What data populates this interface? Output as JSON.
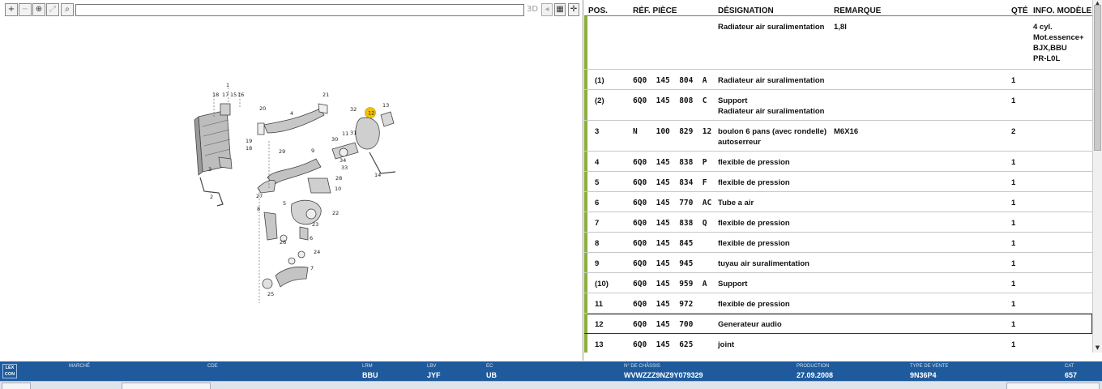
{
  "toolbar": {
    "zoom_in": "+",
    "zoom_out": "−",
    "zoom_area": "⊕",
    "zoom_fit": "⤢",
    "search": "⌕",
    "mode_3d": "3D"
  },
  "table": {
    "headers": {
      "pos": "POS.",
      "ref": "RÉF. PIÈCE",
      "designation": "DÉSIGNATION",
      "remarque": "REMARQUE",
      "qte": "QTÉ",
      "info": "INFO. MODÈLE"
    },
    "rows": [
      {
        "pos": "",
        "ref": "",
        "designation": "Radiateur air suralimentation",
        "remarque": "1,8l",
        "qte": "",
        "info": "4 cyl.\nMot.essence+\nBJX,BBU\nPR-L0L"
      },
      {
        "pos": "(1)",
        "ref": "6Q0  145  804  A",
        "designation": "Radiateur air suralimentation",
        "remarque": "",
        "qte": "1",
        "info": ""
      },
      {
        "pos": "(2)",
        "ref": "6Q0  145  808  C",
        "designation": "Support\nRadiateur air suralimentation",
        "remarque": "",
        "qte": "1",
        "info": ""
      },
      {
        "pos": "3",
        "ref": "N    100  829  12",
        "designation": "boulon 6 pans (avec rondelle)\nautoserreur",
        "remarque": "M6X16",
        "qte": "2",
        "info": ""
      },
      {
        "pos": "4",
        "ref": "6Q0  145  838  P",
        "designation": "flexible de pression",
        "remarque": "",
        "qte": "1",
        "info": ""
      },
      {
        "pos": "5",
        "ref": "6Q0  145  834  F",
        "designation": "flexible de pression",
        "remarque": "",
        "qte": "1",
        "info": ""
      },
      {
        "pos": "6",
        "ref": "6Q0  145  770  AC",
        "designation": "Tube a air",
        "remarque": "",
        "qte": "1",
        "info": ""
      },
      {
        "pos": "7",
        "ref": "6Q0  145  838  Q",
        "designation": "flexible de pression",
        "remarque": "",
        "qte": "1",
        "info": ""
      },
      {
        "pos": "8",
        "ref": "6Q0  145  845",
        "designation": "flexible de pression",
        "remarque": "",
        "qte": "1",
        "info": ""
      },
      {
        "pos": "9",
        "ref": "6Q0  145  945",
        "designation": "tuyau air suralimentation",
        "remarque": "",
        "qte": "1",
        "info": ""
      },
      {
        "pos": "(10)",
        "ref": "6Q0  145  959  A",
        "designation": "Support",
        "remarque": "",
        "qte": "1",
        "info": ""
      },
      {
        "pos": "11",
        "ref": "6Q0  145  972",
        "designation": "flexible de pression",
        "remarque": "",
        "qte": "1",
        "info": ""
      },
      {
        "pos": "12",
        "ref": "6Q0  145  700",
        "designation": "Generateur audio",
        "remarque": "",
        "qte": "1",
        "info": "",
        "selected": true
      },
      {
        "pos": "13",
        "ref": "6Q0  145  625",
        "designation": "joint",
        "remarque": "",
        "qte": "1",
        "info": ""
      }
    ]
  },
  "diagram": {
    "callouts": [
      "1",
      "18",
      "17",
      "15",
      "16",
      "19",
      "18",
      "3",
      "2",
      "20",
      "4",
      "21",
      "32",
      "12",
      "13",
      "31",
      "11",
      "30",
      "29",
      "9",
      "10",
      "28",
      "34",
      "33",
      "14",
      "27",
      "5",
      "22",
      "8",
      "23",
      "6",
      "26",
      "24",
      "7",
      "25"
    ],
    "highlight_label": "12",
    "highlight_color": "#f2c200"
  },
  "status": {
    "logo": "LEX\nCON",
    "marche_label": "MARCHÉ",
    "marche_value": "",
    "cde_label": "CDE",
    "cde_value": "",
    "lrm_label": "LRM",
    "lrm_value": "BBU",
    "lbv_label": "LBV",
    "lbv_value": "JYF",
    "ec_label": "EC",
    "ec_value": "UB",
    "chassis_label": "N° DE CHÂSSIS",
    "chassis_value": "WVWZZZ9NZ9Y079329",
    "production_label": "PRODUCTION",
    "production_value": "27.09.2008",
    "type_label": "TYPE DE VENTE",
    "type_value": "9N36P4",
    "cat_label": "CAT",
    "cat_value": "657"
  },
  "colors": {
    "status_bg": "#1f5b9c",
    "row_marker": "#8cae3e"
  }
}
